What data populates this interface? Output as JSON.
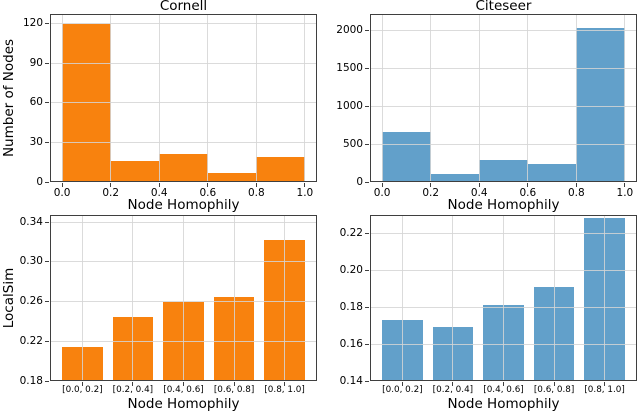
{
  "figure": {
    "background": "#ffffff",
    "grid_color": "#d5d5d5",
    "spine_color": "#3f3f3f",
    "orange": "#f8820e",
    "blue": "#62a0ca"
  },
  "chart_data": [
    {
      "id": "cornell-node-count",
      "type": "bar",
      "title": "Cornell",
      "xlabel": "Node Homophily",
      "ylabel": "Number of Nodes",
      "color": "#f8820e",
      "grid": true,
      "legend": "none",
      "x_mode": "bins",
      "bin_edges": [
        0.0,
        0.2,
        0.4,
        0.6,
        0.8,
        1.0
      ],
      "values": [
        120,
        16,
        21,
        7,
        19
      ],
      "xlim": [
        -0.05,
        1.05
      ],
      "ylim": [
        0,
        127.5
      ],
      "xtick_values": [
        0.0,
        0.2,
        0.4,
        0.6,
        0.8,
        1.0
      ],
      "xtick_labels": [
        "0.0",
        "0.2",
        "0.4",
        "0.6",
        "0.8",
        "1.0"
      ],
      "ytick_values": [
        0,
        30,
        60,
        90,
        120
      ],
      "ytick_labels": [
        "0",
        "30",
        "60",
        "90",
        "120"
      ]
    },
    {
      "id": "citeseer-node-count",
      "type": "bar",
      "title": "Citeseer",
      "xlabel": "Node Homophily",
      "ylabel": "",
      "color": "#62a0ca",
      "grid": true,
      "legend": "none",
      "x_mode": "bins",
      "bin_edges": [
        0.0,
        0.2,
        0.4,
        0.6,
        0.8,
        1.0
      ],
      "values": [
        660,
        112,
        290,
        244,
        2030
      ],
      "xlim": [
        -0.05,
        1.05
      ],
      "ylim": [
        0,
        2210
      ],
      "xtick_values": [
        0.0,
        0.2,
        0.4,
        0.6,
        0.8,
        1.0
      ],
      "xtick_labels": [
        "0.0",
        "0.2",
        "0.4",
        "0.6",
        "0.8",
        "1.0"
      ],
      "ytick_values": [
        0,
        500,
        1000,
        1500,
        2000
      ],
      "ytick_labels": [
        "0",
        "500",
        "1000",
        "1500",
        "2000"
      ]
    },
    {
      "id": "cornell-localsim",
      "type": "bar",
      "title": "",
      "xlabel": "Node Homophily",
      "ylabel": "LocalSim",
      "color": "#f8820e",
      "grid": true,
      "legend": "none",
      "x_mode": "categories",
      "categories": [
        "[0.0, 0.2]",
        "[0.2, 0.4]",
        "[0.4, 0.6]",
        "[0.6, 0.8]",
        "[0.8, 1.0]"
      ],
      "values": [
        0.214,
        0.244,
        0.26,
        0.265,
        0.322
      ],
      "ylim": [
        0.18,
        0.347
      ],
      "ytick_values": [
        0.18,
        0.22,
        0.26,
        0.3,
        0.34
      ],
      "ytick_labels": [
        "0.18",
        "0.22",
        "0.26",
        "0.30",
        "0.34"
      ]
    },
    {
      "id": "citeseer-localsim",
      "type": "bar",
      "title": "",
      "xlabel": "Node Homophily",
      "ylabel": "",
      "color": "#62a0ca",
      "grid": true,
      "legend": "none",
      "x_mode": "categories",
      "categories": [
        "[0.0, 0.2]",
        "[0.2, 0.4]",
        "[0.4, 0.6]",
        "[0.6, 0.8]",
        "[0.8, 1.0]"
      ],
      "values": [
        0.173,
        0.169,
        0.181,
        0.191,
        0.228
      ],
      "ylim": [
        0.14,
        0.2297
      ],
      "ytick_values": [
        0.14,
        0.16,
        0.18,
        0.2,
        0.22
      ],
      "ytick_labels": [
        "0.14",
        "0.16",
        "0.18",
        "0.20",
        "0.22"
      ]
    }
  ]
}
